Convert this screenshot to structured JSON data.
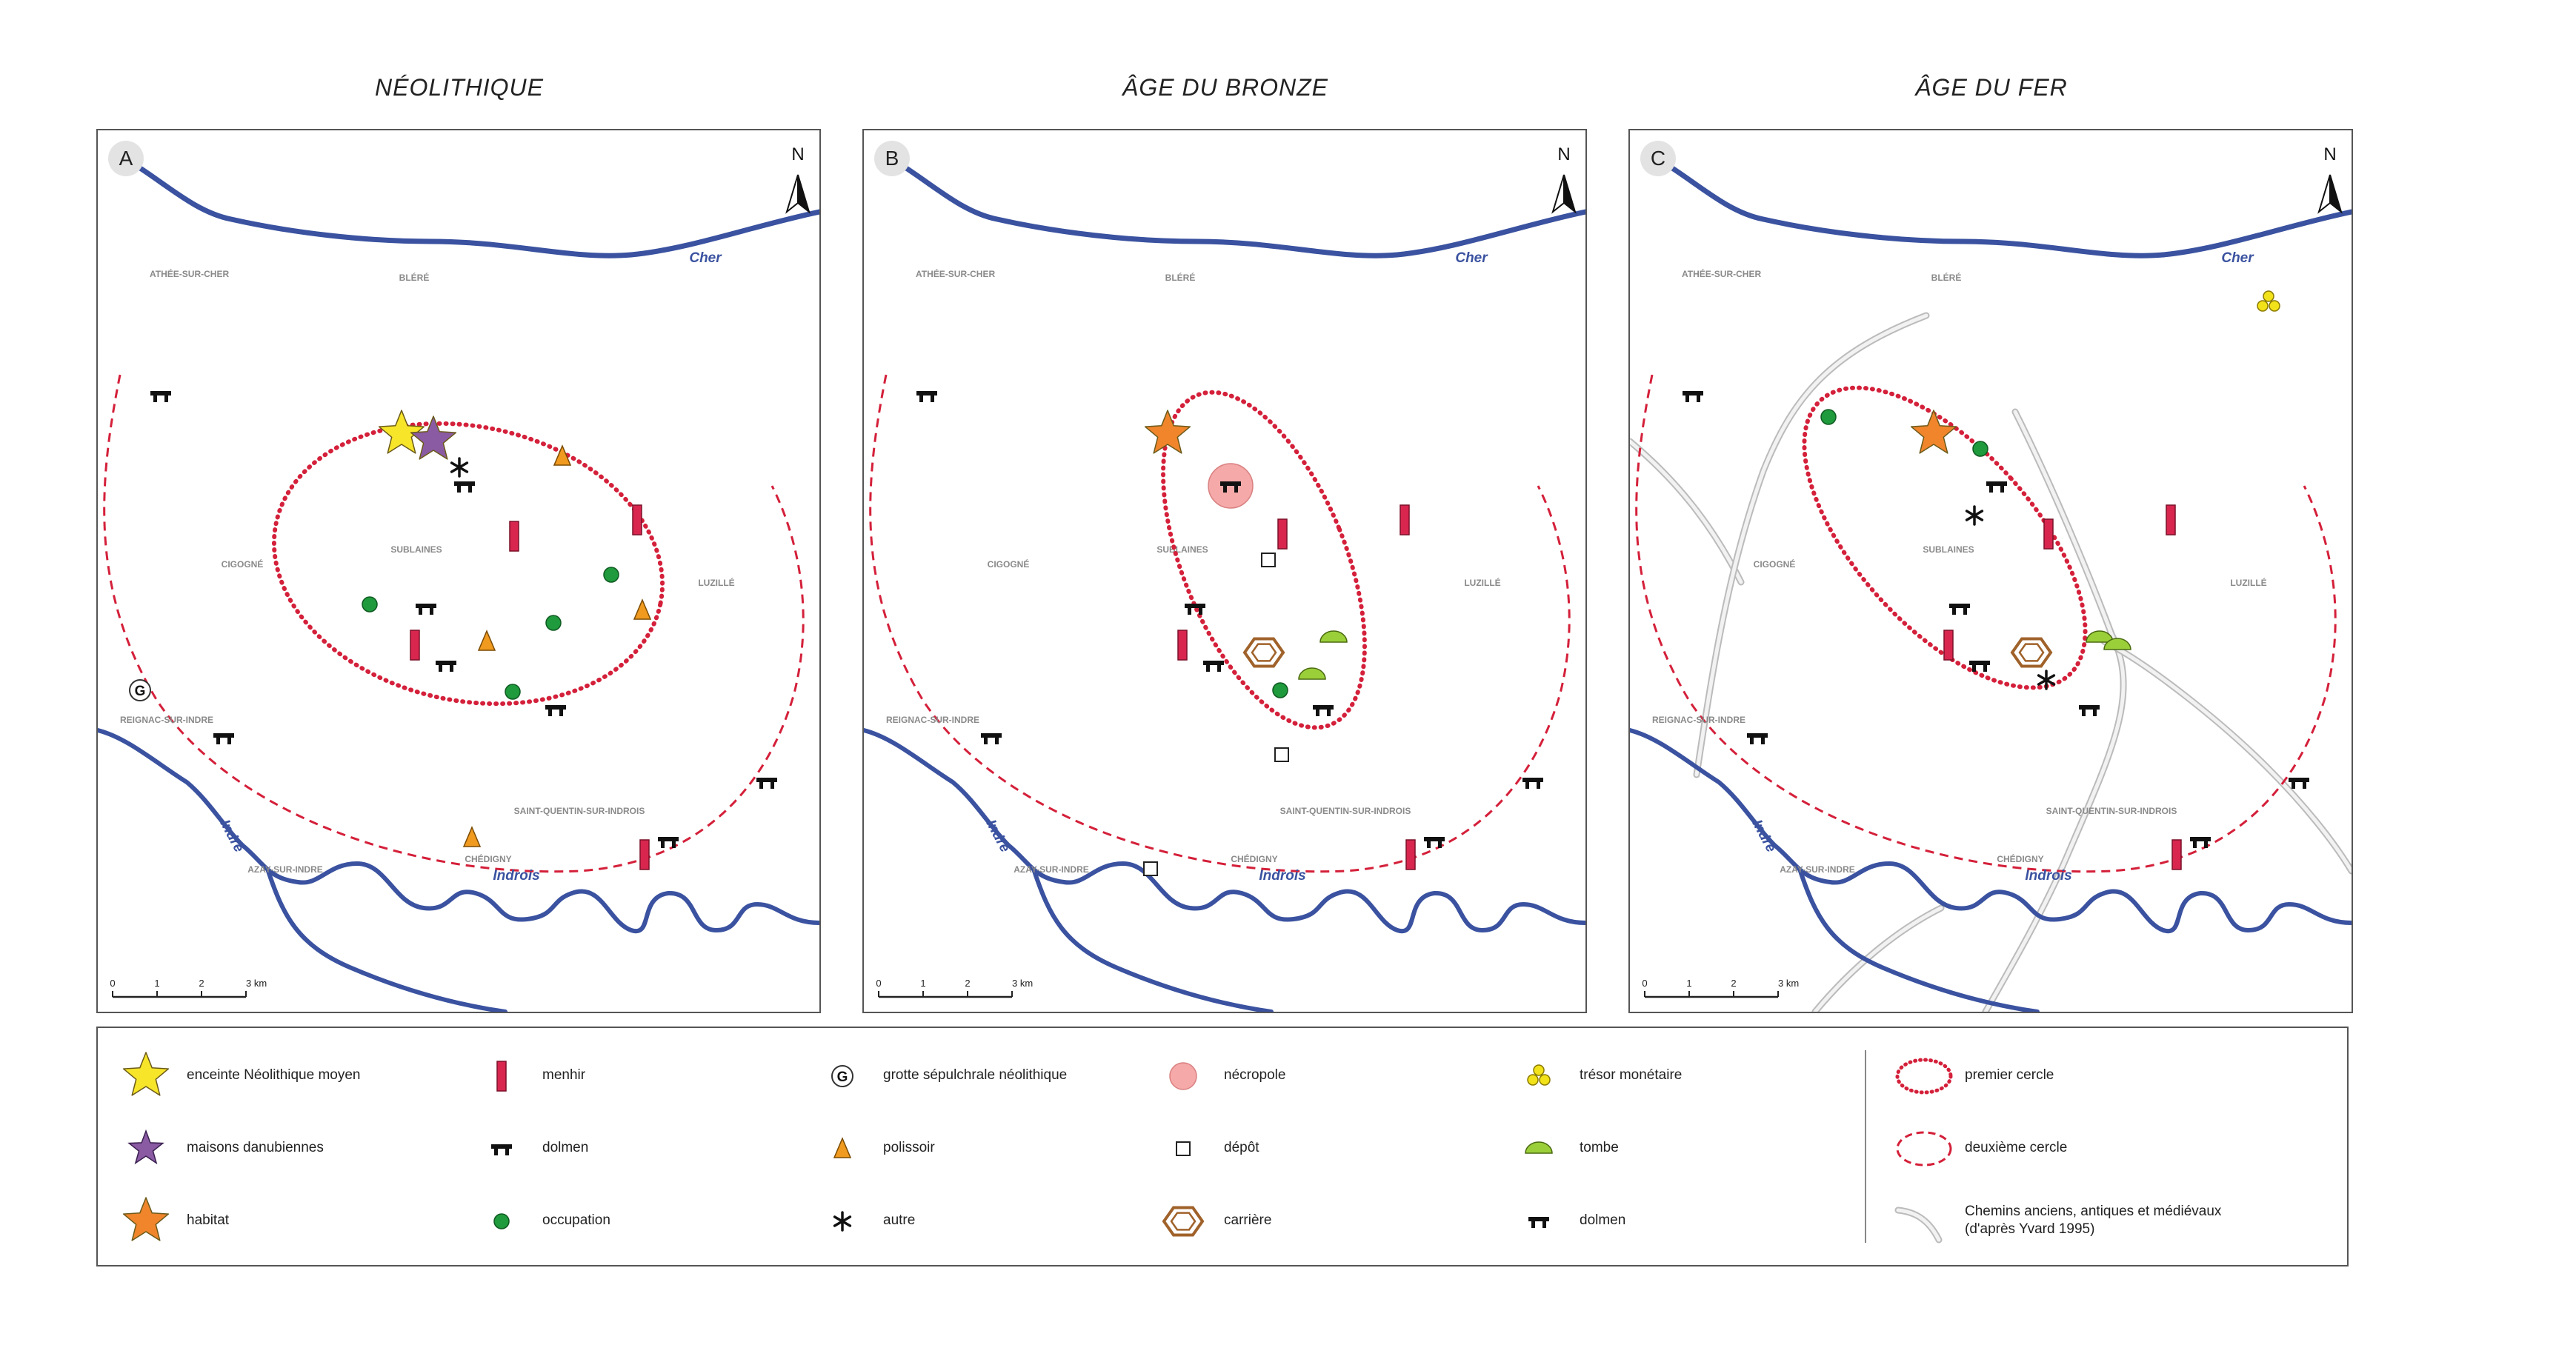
{
  "panels": [
    {
      "letter": "A",
      "title": "NÉOLITHIQUE"
    },
    {
      "letter": "B",
      "title": "ÂGE DU BRONZE"
    },
    {
      "letter": "C",
      "title": "ÂGE DU FER"
    }
  ],
  "north_label": "N",
  "towns": {
    "athee": "ATHÉE-SUR-CHER",
    "blere": "BLÉRÉ",
    "cigogne": "CIGOGNÉ",
    "sublaines": "SUBLAINES",
    "luzille": "LUZILLÉ",
    "reignac": "REIGNAC-SUR-INDRE",
    "saint_quentin": "SAINT-QUENTIN-SUR-INDROIS",
    "chedigny": "CHÉDIGNY",
    "azay": "AZAY-SUR-INDRE"
  },
  "rivers": {
    "cher": "Cher",
    "indre": "Indre",
    "indrois": "Indrois"
  },
  "scale": {
    "ticks": [
      "0",
      "1",
      "2",
      "3 km"
    ]
  },
  "legend": [
    {
      "symbol": "yellow-star",
      "label": "enceinte Néolithique moyen"
    },
    {
      "symbol": "purple-star",
      "label": "maisons danubiennes"
    },
    {
      "symbol": "orange-star",
      "label": "habitat"
    },
    {
      "symbol": "menhir",
      "label": "menhir"
    },
    {
      "symbol": "dolmen",
      "label": "dolmen"
    },
    {
      "symbol": "occupation",
      "label": "occupation"
    },
    {
      "symbol": "grotte",
      "label": "grotte sépulchrale néolithique"
    },
    {
      "symbol": "polissoir",
      "label": "polissoir"
    },
    {
      "symbol": "autre",
      "label": "autre"
    },
    {
      "symbol": "necropole",
      "label": "nécropole"
    },
    {
      "symbol": "depot",
      "label": "dépôt"
    },
    {
      "symbol": "carriere",
      "label": "carrière"
    },
    {
      "symbol": "tresor",
      "label": "trésor monétaire"
    },
    {
      "symbol": "tombe",
      "label": "tombe"
    },
    {
      "symbol": "dolmen",
      "label": "dolmen"
    },
    {
      "symbol": "premier-cercle",
      "label": "premier cercle"
    },
    {
      "symbol": "deuxieme-cercle",
      "label": "deuxième cercle"
    },
    {
      "symbol": "chemins",
      "label": "Chemins anciens, antiques et médiévaux (d'après Yvard 1995)"
    }
  ],
  "colors": {
    "river": "#3a52a0",
    "circle": "#d4203a",
    "menhir": "#d8264f",
    "yellow_star": "#f7e52a",
    "purple_star": "#8a5aa3",
    "orange_star": "#f0852c",
    "occupation": "#1f9a3c",
    "polissoir": "#f09a20",
    "necropole": "#f5a9a9",
    "tombe": "#9bcf3a",
    "carriere": "#a0622a",
    "tresor": "#f2e21a",
    "road": "#d8d8d8"
  }
}
